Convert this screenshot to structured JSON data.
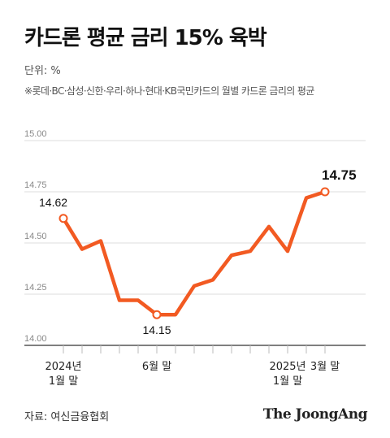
{
  "title": "카드론 평균 금리 15% 육박",
  "unit_label": "단위: %",
  "note": "※롯데·BC·삼성·신한·우리·하나·현대·KB국민카드의 월별 카드론 금리의 평균",
  "source": "자료: 여신금융협회",
  "logo": "The JoongAng",
  "colors": {
    "line": "#f25a22",
    "grid": "#dddddd",
    "axis": "#333333",
    "marker_fill": "#ffffff"
  },
  "chart_data": {
    "type": "line",
    "title": "카드론 평균 금리 15% 육박",
    "xlabel": "",
    "ylabel": "",
    "ylim": [
      14.0,
      15.0
    ],
    "yticks": [
      "15.00",
      "14.75",
      "14.50",
      "14.25",
      "14.00"
    ],
    "grid": true,
    "x": [
      "2024-01",
      "2024-02",
      "2024-03",
      "2024-04",
      "2024-05",
      "2024-06",
      "2024-07",
      "2024-08",
      "2024-09",
      "2024-10",
      "2024-11",
      "2024-12",
      "2025-01",
      "2025-02",
      "2025-03"
    ],
    "xtick_labels": [
      {
        "index": 0,
        "lines": [
          "2024년",
          "1월 말"
        ]
      },
      {
        "index": 5,
        "lines": [
          "6월 말"
        ]
      },
      {
        "index": 12,
        "lines": [
          "2025년",
          "1월 말"
        ]
      },
      {
        "index": 14,
        "lines": [
          "3월 말"
        ]
      }
    ],
    "series": [
      {
        "values": [
          14.62,
          14.47,
          14.51,
          14.22,
          14.22,
          14.15,
          14.15,
          14.29,
          14.32,
          14.44,
          14.46,
          14.58,
          14.46,
          14.72,
          14.75
        ]
      }
    ],
    "annotations": [
      {
        "index": 0,
        "label": "14.62",
        "position": "above"
      },
      {
        "index": 5,
        "label": "14.15",
        "position": "below"
      },
      {
        "index": 14,
        "label": "14.75",
        "position": "above",
        "emphasis": true
      }
    ]
  }
}
